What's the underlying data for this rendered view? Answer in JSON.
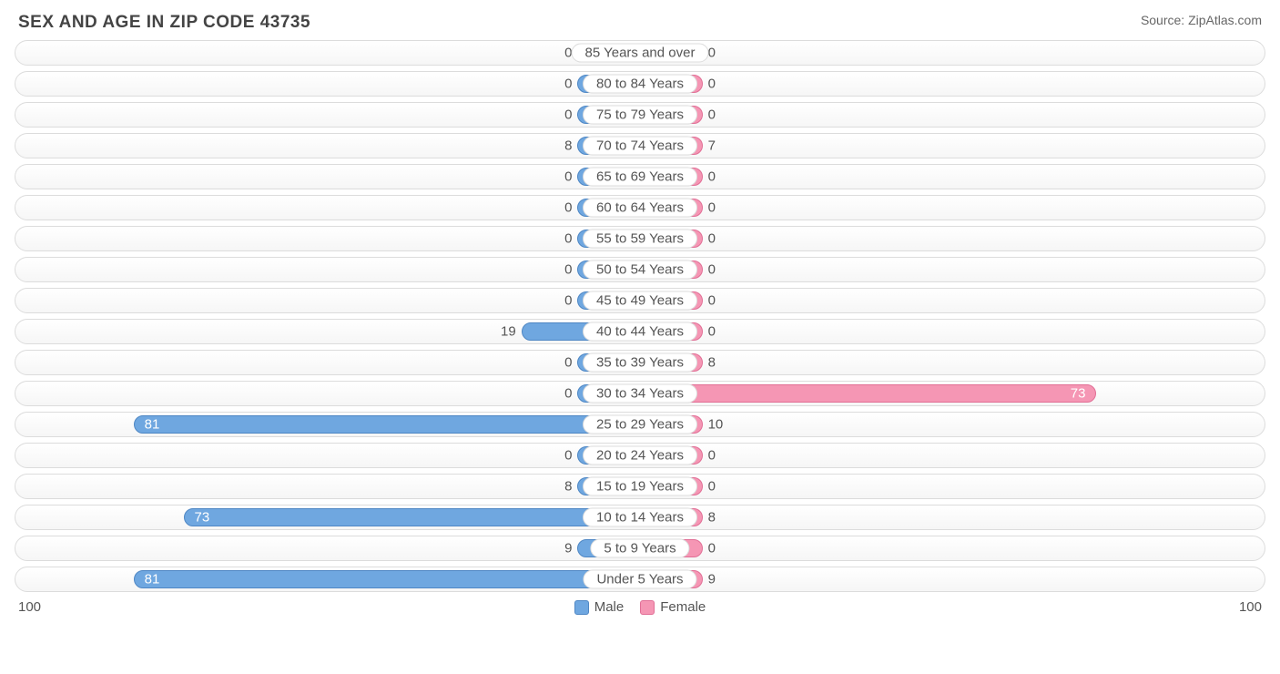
{
  "header": {
    "title": "SEX AND AGE IN ZIP CODE 43735",
    "source": "Source: ZipAtlas.com"
  },
  "chart": {
    "type": "population-pyramid",
    "axis_max": 100,
    "axis_left_label": "100",
    "axis_right_label": "100",
    "bar_min_pct": 5.0,
    "track_border_color": "#dcdcdc",
    "track_bg_top": "#ffffff",
    "track_bg_bottom": "#f6f6f6",
    "label_fontsize": 15,
    "label_color": "#555555",
    "inside_threshold": 45,
    "series": {
      "male": {
        "label": "Male",
        "fill": "#6fa7e0",
        "border": "#4f87c4"
      },
      "female": {
        "label": "Female",
        "fill": "#f596b4",
        "border": "#e16f96"
      }
    },
    "rows": [
      {
        "category": "85 Years and over",
        "male": 0,
        "female": 0
      },
      {
        "category": "80 to 84 Years",
        "male": 0,
        "female": 0
      },
      {
        "category": "75 to 79 Years",
        "male": 0,
        "female": 0
      },
      {
        "category": "70 to 74 Years",
        "male": 8,
        "female": 7
      },
      {
        "category": "65 to 69 Years",
        "male": 0,
        "female": 0
      },
      {
        "category": "60 to 64 Years",
        "male": 0,
        "female": 0
      },
      {
        "category": "55 to 59 Years",
        "male": 0,
        "female": 0
      },
      {
        "category": "50 to 54 Years",
        "male": 0,
        "female": 0
      },
      {
        "category": "45 to 49 Years",
        "male": 0,
        "female": 0
      },
      {
        "category": "40 to 44 Years",
        "male": 19,
        "female": 0
      },
      {
        "category": "35 to 39 Years",
        "male": 0,
        "female": 8
      },
      {
        "category": "30 to 34 Years",
        "male": 0,
        "female": 73
      },
      {
        "category": "25 to 29 Years",
        "male": 81,
        "female": 10
      },
      {
        "category": "20 to 24 Years",
        "male": 0,
        "female": 0
      },
      {
        "category": "15 to 19 Years",
        "male": 8,
        "female": 0
      },
      {
        "category": "10 to 14 Years",
        "male": 73,
        "female": 8
      },
      {
        "category": "5 to 9 Years",
        "male": 9,
        "female": 0
      },
      {
        "category": "Under 5 Years",
        "male": 81,
        "female": 9
      }
    ]
  }
}
